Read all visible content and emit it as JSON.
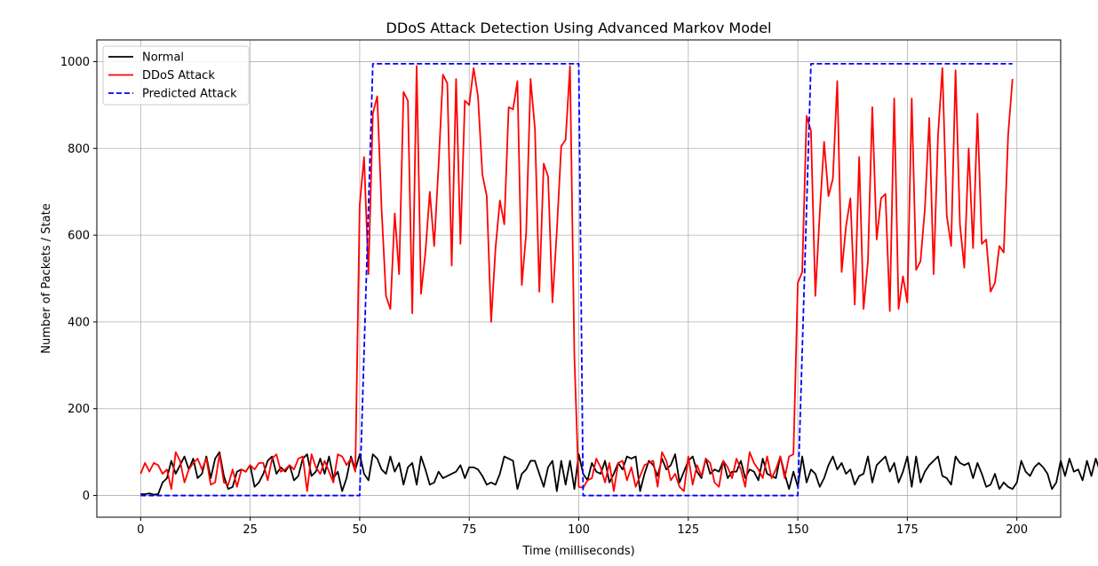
{
  "chart_data": {
    "type": "line",
    "title": "DDoS Attack Detection Using Advanced Markov Model",
    "xlabel": "Time (milliseconds)",
    "ylabel": "Number of Packets / State",
    "xlim": [
      -10,
      210
    ],
    "ylim": [
      -50,
      1050
    ],
    "xticks": [
      0,
      25,
      50,
      75,
      100,
      125,
      150,
      175,
      200
    ],
    "yticks": [
      0,
      200,
      400,
      600,
      800,
      1000
    ],
    "grid": true,
    "legend_position": "top-left",
    "series": [
      {
        "name": "Normal",
        "color": "#000000",
        "dash": "solid",
        "x_start": 0,
        "x_step": 1,
        "values": [
          3,
          3,
          5,
          2,
          3,
          30,
          40,
          80,
          50,
          70,
          90,
          60,
          85,
          40,
          50,
          90,
          40,
          85,
          100,
          45,
          15,
          20,
          55,
          60,
          55,
          70,
          20,
          30,
          50,
          80,
          90,
          50,
          65,
          55,
          70,
          35,
          45,
          85,
          95,
          45,
          55,
          85,
          50,
          90,
          40,
          55,
          10,
          40,
          90,
          60,
          95,
          50,
          35,
          95,
          85,
          60,
          50,
          90,
          55,
          75,
          25,
          65,
          75,
          25,
          90,
          60,
          25,
          30,
          55,
          40,
          45,
          50,
          55,
          70,
          40,
          65,
          65,
          60,
          45,
          25,
          30,
          25,
          50,
          90,
          85,
          80,
          15,
          50,
          60,
          80,
          80,
          50,
          20,
          65,
          80,
          10,
          80,
          25,
          80,
          15,
          95,
          50,
          35,
          75,
          55,
          50,
          80,
          30,
          50,
          75,
          60,
          90,
          85,
          90,
          10,
          50,
          80,
          70,
          45,
          85,
          60,
          70,
          95,
          30,
          55,
          80,
          90,
          55,
          40,
          85,
          50,
          60,
          55,
          80,
          40,
          55,
          55,
          80,
          40,
          60,
          55,
          35,
          85,
          50,
          45,
          40,
          90,
          50,
          15,
          55,
          20,
          90,
          30,
          60,
          50,
          20,
          40,
          70,
          90,
          60,
          75,
          50,
          60,
          25,
          45,
          50,
          90,
          30,
          70,
          80,
          90,
          55,
          75,
          30,
          55,
          90,
          20,
          90,
          30,
          55,
          70,
          80,
          90,
          45,
          40,
          25,
          90,
          75,
          70,
          75,
          40,
          75,
          50,
          20,
          25,
          50,
          15,
          30,
          20,
          15,
          30,
          80,
          55,
          45,
          65,
          75,
          65,
          50,
          15,
          30,
          80,
          45,
          85,
          55,
          60,
          35,
          80,
          45,
          85,
          55
        ]
      },
      {
        "name": "DDoS Attack",
        "color": "#ff0000",
        "dash": "solid",
        "x_start": 0,
        "x_step": 1,
        "values": [
          50,
          75,
          55,
          75,
          70,
          50,
          60,
          15,
          100,
          80,
          30,
          60,
          75,
          85,
          60,
          85,
          25,
          30,
          95,
          30,
          25,
          60,
          20,
          60,
          55,
          70,
          60,
          75,
          75,
          35,
          85,
          95,
          55,
          60,
          70,
          60,
          85,
          90,
          10,
          95,
          65,
          50,
          80,
          55,
          30,
          95,
          90,
          70,
          85,
          55,
          670,
          780,
          510,
          880,
          920,
          660,
          460,
          430,
          650,
          510,
          930,
          910,
          420,
          990,
          465,
          560,
          700,
          575,
          760,
          970,
          950,
          530,
          960,
          580,
          910,
          900,
          985,
          920,
          740,
          690,
          400,
          570,
          680,
          625,
          895,
          890,
          955,
          485,
          605,
          960,
          845,
          470,
          765,
          735,
          445,
          610,
          805,
          820,
          990,
          320,
          20,
          18,
          35,
          40,
          85,
          65,
          30,
          75,
          10,
          75,
          80,
          35,
          65,
          20,
          45,
          70,
          75,
          80,
          20,
          100,
          80,
          35,
          50,
          20,
          10,
          90,
          25,
          70,
          45,
          85,
          75,
          30,
          20,
          80,
          65,
          40,
          85,
          60,
          20,
          100,
          75,
          60,
          40,
          90,
          40,
          60,
          90,
          40,
          90,
          95,
          490,
          515,
          875,
          840,
          460,
          650,
          815,
          690,
          730,
          955,
          515,
          620,
          685,
          440,
          780,
          430,
          540,
          895,
          590,
          685,
          695,
          425,
          915,
          430,
          505,
          445,
          915,
          520,
          540,
          660,
          870,
          510,
          830,
          985,
          645,
          575,
          980,
          625,
          525,
          800,
          570,
          880,
          580,
          590,
          470,
          490,
          575,
          560,
          830,
          960
        ]
      },
      {
        "name": "Predicted Attack",
        "color": "#0000ff",
        "dash": "dashed",
        "points": [
          [
            0,
            0
          ],
          [
            50,
            0
          ],
          [
            53,
            995
          ],
          [
            100,
            995
          ],
          [
            101,
            0
          ],
          [
            150,
            0
          ],
          [
            153,
            995
          ],
          [
            199,
            995
          ]
        ]
      }
    ]
  }
}
